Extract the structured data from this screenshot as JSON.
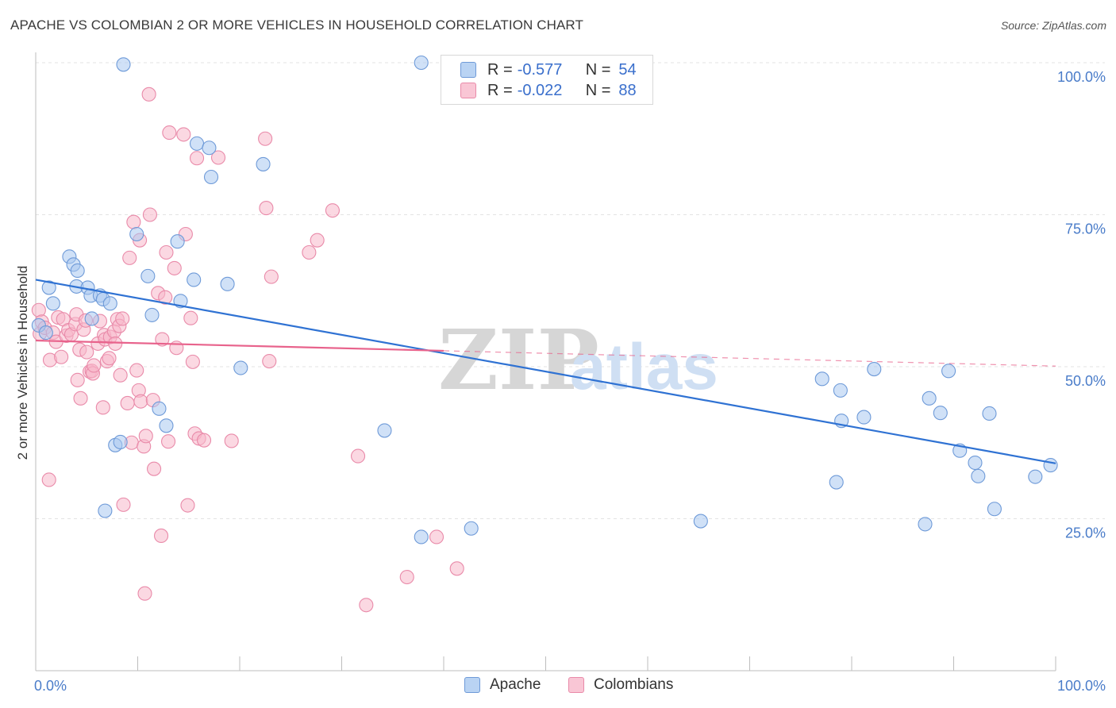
{
  "title": "APACHE VS COLOMBIAN 2 OR MORE VEHICLES IN HOUSEHOLD CORRELATION CHART",
  "source": "Source: ZipAtlas.com",
  "watermark": {
    "zip": "ZIP",
    "atlas": "atlas"
  },
  "legend": {
    "apache": {
      "r_label": "R =",
      "r_value": "-0.577",
      "n_label": "N =",
      "n_value": "54"
    },
    "colombians": {
      "r_label": "R =",
      "r_value": "-0.022",
      "n_label": "N =",
      "n_value": "88"
    }
  },
  "bottom_legend": {
    "apache": "Apache",
    "colombians": "Colombians"
  },
  "colors": {
    "apache_fill": "#a9c8f0",
    "apache_stroke": "#6e9ad8",
    "apache_line": "#2f72d3",
    "colombians_fill": "#f7b8cb",
    "colombians_stroke": "#e98aa9",
    "colombians_line": "#e8638c",
    "tick_text": "#4a7cc9",
    "grid": "#e3e3e3"
  },
  "chart_data": {
    "type": "scatter",
    "ylabel": "2 or more Vehicles in Household",
    "x_tick_labels": [
      "0.0%",
      "100.0%"
    ],
    "y_tick_labels": [
      "100.0%",
      "75.0%",
      "50.0%",
      "25.0%"
    ],
    "xlim": [
      0,
      100
    ],
    "ylim": [
      0,
      102
    ],
    "grid": true,
    "legend_position": "top-center",
    "series": [
      {
        "name": "Apache",
        "trend": {
          "x0": 0,
          "y0": 64.3,
          "x1": 100,
          "y1": 34.1,
          "solid_to": 100
        },
        "points": [
          [
            0.3,
            56.8
          ],
          [
            1.3,
            63.0
          ],
          [
            1.7,
            60.4
          ],
          [
            3.3,
            68.1
          ],
          [
            3.7,
            66.8
          ],
          [
            4.0,
            63.2
          ],
          [
            4.1,
            65.8
          ],
          [
            5.1,
            63.0
          ],
          [
            5.4,
            61.7
          ],
          [
            5.5,
            57.9
          ],
          [
            6.3,
            61.7
          ],
          [
            6.6,
            61.1
          ],
          [
            6.8,
            26.3
          ],
          [
            7.3,
            60.4
          ],
          [
            7.8,
            37.1
          ],
          [
            8.3,
            37.6
          ],
          [
            8.6,
            99.7
          ],
          [
            9.9,
            71.8
          ],
          [
            11.0,
            64.9
          ],
          [
            11.4,
            58.5
          ],
          [
            12.1,
            43.1
          ],
          [
            12.8,
            40.3
          ],
          [
            13.9,
            70.6
          ],
          [
            14.2,
            60.8
          ],
          [
            15.5,
            64.3
          ],
          [
            15.8,
            86.7
          ],
          [
            17.0,
            86.0
          ],
          [
            17.2,
            81.2
          ],
          [
            18.8,
            63.6
          ],
          [
            20.1,
            49.8
          ],
          [
            22.3,
            83.3
          ],
          [
            34.2,
            39.5
          ],
          [
            37.8,
            22.0
          ],
          [
            37.8,
            100.0
          ],
          [
            42.7,
            23.4
          ],
          [
            65.2,
            24.6
          ],
          [
            77.1,
            48.0
          ],
          [
            78.5,
            31.0
          ],
          [
            78.9,
            46.1
          ],
          [
            79.0,
            41.1
          ],
          [
            81.2,
            41.7
          ],
          [
            82.2,
            49.6
          ],
          [
            87.2,
            24.1
          ],
          [
            87.6,
            44.8
          ],
          [
            88.7,
            42.4
          ],
          [
            89.5,
            49.3
          ],
          [
            90.6,
            36.2
          ],
          [
            92.1,
            34.2
          ],
          [
            92.4,
            32.0
          ],
          [
            93.5,
            42.3
          ],
          [
            94.0,
            26.6
          ],
          [
            98.0,
            31.9
          ],
          [
            99.5,
            33.8
          ],
          [
            1.0,
            55.6
          ]
        ]
      },
      {
        "name": "Colombians",
        "trend": {
          "x0": 0,
          "y0": 54.3,
          "x1": 100,
          "y1": 50.1,
          "solid_to": 40
        },
        "points": [
          [
            0.3,
            59.3
          ],
          [
            0.4,
            55.4
          ],
          [
            0.6,
            57.4
          ],
          [
            0.9,
            56.4
          ],
          [
            1.3,
            31.4
          ],
          [
            1.4,
            51.1
          ],
          [
            1.7,
            55.6
          ],
          [
            2.0,
            54.1
          ],
          [
            2.2,
            58.1
          ],
          [
            2.5,
            51.6
          ],
          [
            2.7,
            57.8
          ],
          [
            3.0,
            55.1
          ],
          [
            3.2,
            56.0
          ],
          [
            3.5,
            55.3
          ],
          [
            3.9,
            57.0
          ],
          [
            4.0,
            58.6
          ],
          [
            4.1,
            47.8
          ],
          [
            4.3,
            52.8
          ],
          [
            4.4,
            44.8
          ],
          [
            4.7,
            56.1
          ],
          [
            4.9,
            57.6
          ],
          [
            5.0,
            52.4
          ],
          [
            5.3,
            49.2
          ],
          [
            5.5,
            49.3
          ],
          [
            5.6,
            48.9
          ],
          [
            5.7,
            50.2
          ],
          [
            6.1,
            53.8
          ],
          [
            6.3,
            57.5
          ],
          [
            6.6,
            43.3
          ],
          [
            6.7,
            55.2
          ],
          [
            6.8,
            54.5
          ],
          [
            7.0,
            50.9
          ],
          [
            7.2,
            51.4
          ],
          [
            7.3,
            54.9
          ],
          [
            7.7,
            55.8
          ],
          [
            7.8,
            53.8
          ],
          [
            8.0,
            57.8
          ],
          [
            8.2,
            56.7
          ],
          [
            8.3,
            48.6
          ],
          [
            8.5,
            57.9
          ],
          [
            8.6,
            27.3
          ],
          [
            9.0,
            44.0
          ],
          [
            9.2,
            67.9
          ],
          [
            9.4,
            37.5
          ],
          [
            9.6,
            73.8
          ],
          [
            9.9,
            49.4
          ],
          [
            10.1,
            46.1
          ],
          [
            10.2,
            70.8
          ],
          [
            10.3,
            44.3
          ],
          [
            10.6,
            36.9
          ],
          [
            10.7,
            12.7
          ],
          [
            10.8,
            38.6
          ],
          [
            11.1,
            94.8
          ],
          [
            11.2,
            75.0
          ],
          [
            11.5,
            44.5
          ],
          [
            11.6,
            33.2
          ],
          [
            12.0,
            62.1
          ],
          [
            12.3,
            22.2
          ],
          [
            12.4,
            54.5
          ],
          [
            12.7,
            61.4
          ],
          [
            12.8,
            68.8
          ],
          [
            13.0,
            37.7
          ],
          [
            13.1,
            88.5
          ],
          [
            13.6,
            66.2
          ],
          [
            13.8,
            53.1
          ],
          [
            14.5,
            88.2
          ],
          [
            14.7,
            71.8
          ],
          [
            14.9,
            27.2
          ],
          [
            15.2,
            58.0
          ],
          [
            15.4,
            50.8
          ],
          [
            15.6,
            39.0
          ],
          [
            15.8,
            84.3
          ],
          [
            16.0,
            38.2
          ],
          [
            16.5,
            37.9
          ],
          [
            17.9,
            84.4
          ],
          [
            19.2,
            37.8
          ],
          [
            22.5,
            87.5
          ],
          [
            22.6,
            76.1
          ],
          [
            22.9,
            50.9
          ],
          [
            23.1,
            64.8
          ],
          [
            26.8,
            68.8
          ],
          [
            27.6,
            70.8
          ],
          [
            29.1,
            75.7
          ],
          [
            31.6,
            35.3
          ],
          [
            32.4,
            10.8
          ],
          [
            36.4,
            15.4
          ],
          [
            39.3,
            22.0
          ],
          [
            41.3,
            16.8
          ]
        ]
      }
    ]
  }
}
